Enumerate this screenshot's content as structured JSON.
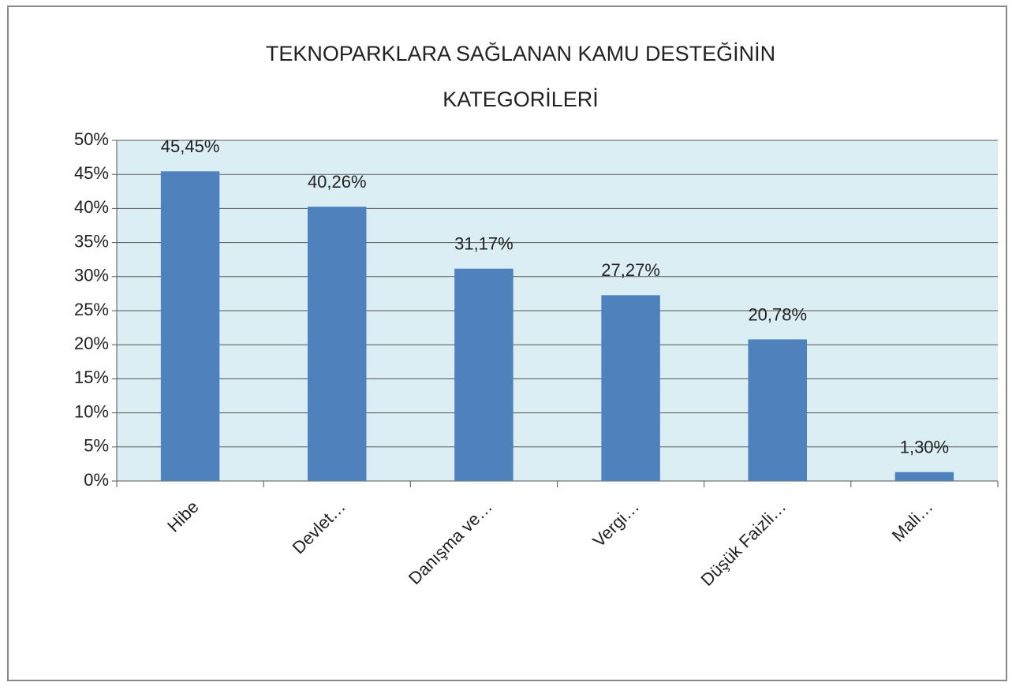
{
  "chart_data": {
    "type": "bar",
    "title": [
      "TEKNOPARKLARA SAĞLANAN KAMU DESTEĞİNİN",
      "KATEGORİLERİ"
    ],
    "categories": [
      "Hibe",
      "Devlet…",
      "Danışma ve…",
      "Vergi…",
      "Düşük Faizli…",
      "Mali…"
    ],
    "values": [
      45.45,
      40.26,
      31.17,
      27.27,
      20.78,
      1.3
    ],
    "value_labels": [
      "45,45%",
      "40,26%",
      "31,17%",
      "27,27%",
      "20,78%",
      "1,30%"
    ],
    "color": "#4f81bd",
    "ylim": [
      0,
      50
    ],
    "yticks": [
      {
        "value": 0,
        "label": "0%"
      },
      {
        "value": 5,
        "label": "5%"
      },
      {
        "value": 10,
        "label": "10%"
      },
      {
        "value": 15,
        "label": "15%"
      },
      {
        "value": 20,
        "label": "20%"
      },
      {
        "value": 25,
        "label": "25%"
      },
      {
        "value": 30,
        "label": "30%"
      },
      {
        "value": 35,
        "label": "35%"
      },
      {
        "value": 40,
        "label": "40%"
      },
      {
        "value": 45,
        "label": "45%"
      },
      {
        "value": 50,
        "label": "50%"
      }
    ],
    "grid": true
  }
}
